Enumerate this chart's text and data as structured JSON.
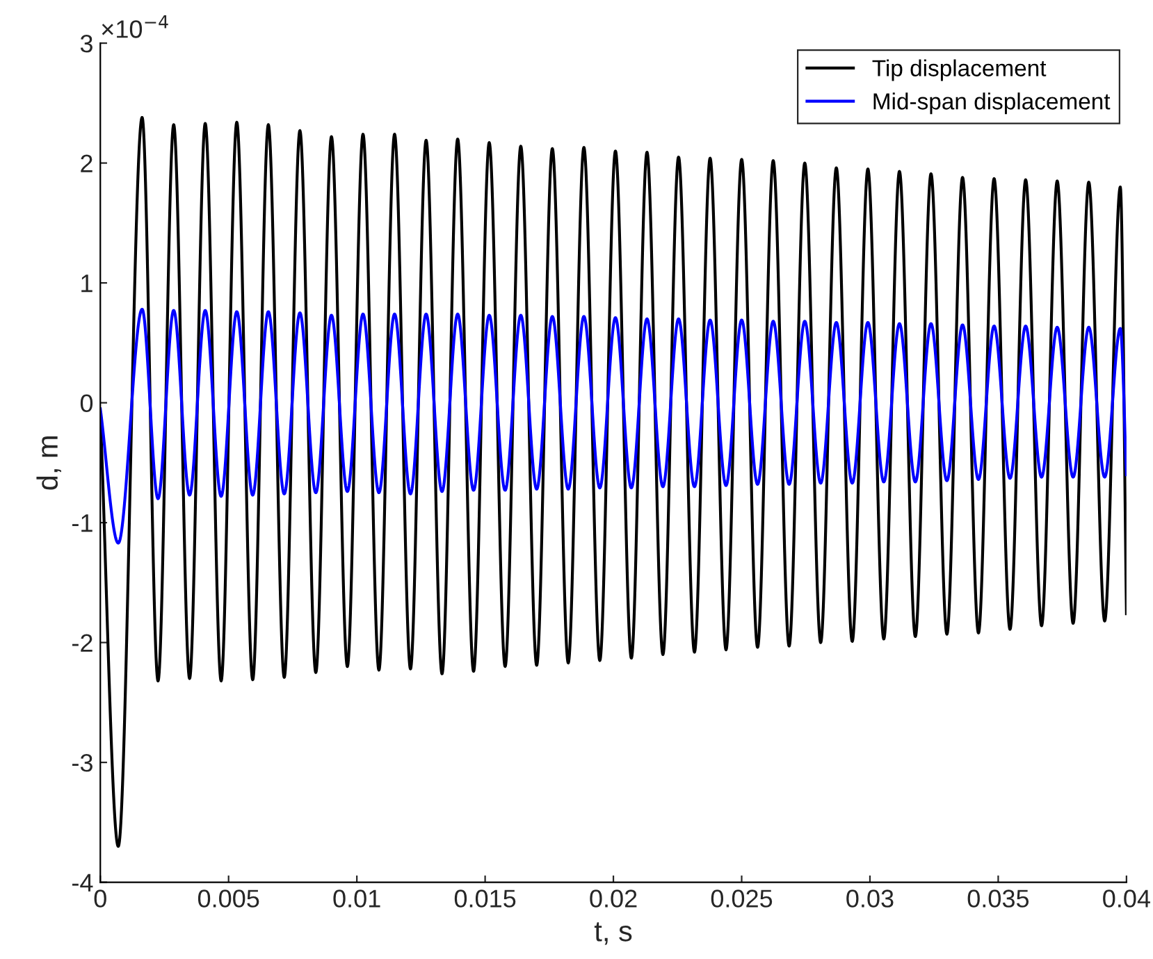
{
  "chart_data": {
    "type": "line",
    "xlabel": "t, s",
    "ylabel": "d, m",
    "annotations": [
      "×10$^{−4}$"
    ],
    "x": [
      0,
      0.0007,
      0.00163,
      0.00225,
      0.00286,
      0.00348,
      0.00409,
      0.00471,
      0.00532,
      0.00594,
      0.00655,
      0.00717,
      0.00778,
      0.0084,
      0.00901,
      0.00963,
      0.01024,
      0.01086,
      0.01147,
      0.01209,
      0.0127,
      0.01332,
      0.01393,
      0.01455,
      0.01516,
      0.01578,
      0.01639,
      0.01701,
      0.01762,
      0.01824,
      0.01885,
      0.01947,
      0.02008,
      0.0207,
      0.02131,
      0.02193,
      0.02254,
      0.02316,
      0.02377,
      0.02439,
      0.025,
      0.02562,
      0.02623,
      0.02685,
      0.02746,
      0.02808,
      0.02869,
      0.02931,
      0.02992,
      0.03054,
      0.03115,
      0.03177,
      0.03238,
      0.033,
      0.03361,
      0.03423,
      0.03484,
      0.03546,
      0.03607,
      0.03669,
      0.0373,
      0.03792,
      0.03853,
      0.03915,
      0.03976,
      0.04
    ],
    "series": [
      {
        "name": "Tip displacement",
        "color": "#000000",
        "values": [
          -0.1,
          -3.7,
          2.38,
          -2.32,
          2.32,
          -2.3,
          2.33,
          -2.32,
          2.34,
          -2.31,
          2.32,
          -2.29,
          2.27,
          -2.25,
          2.22,
          -2.2,
          2.24,
          -2.23,
          2.24,
          -2.22,
          2.19,
          -2.26,
          2.2,
          -2.24,
          2.17,
          -2.2,
          2.14,
          -2.19,
          2.12,
          -2.17,
          2.13,
          -2.15,
          2.1,
          -2.13,
          2.09,
          -2.1,
          2.05,
          -2.08,
          2.04,
          -2.06,
          2.03,
          -2.04,
          2.02,
          -2.03,
          2.0,
          -2.0,
          1.96,
          -1.99,
          1.95,
          -1.97,
          1.93,
          -1.95,
          1.91,
          -1.93,
          1.88,
          -1.92,
          1.87,
          -1.89,
          1.86,
          -1.86,
          1.85,
          -1.84,
          1.84,
          -1.82,
          1.8,
          -1.76
        ]
      },
      {
        "name": "Mid-span displacement",
        "color": "#0000ff",
        "values": [
          -0.05,
          -1.17,
          0.78,
          -0.8,
          0.77,
          -0.77,
          0.77,
          -0.78,
          0.76,
          -0.77,
          0.76,
          -0.76,
          0.75,
          -0.75,
          0.73,
          -0.74,
          0.74,
          -0.75,
          0.74,
          -0.76,
          0.74,
          -0.74,
          0.74,
          -0.73,
          0.73,
          -0.73,
          0.73,
          -0.72,
          0.72,
          -0.72,
          0.72,
          -0.71,
          0.71,
          -0.71,
          0.7,
          -0.7,
          0.7,
          -0.7,
          0.69,
          -0.69,
          0.69,
          -0.68,
          0.68,
          -0.68,
          0.68,
          -0.67,
          0.67,
          -0.67,
          0.67,
          -0.66,
          0.66,
          -0.66,
          0.66,
          -0.65,
          0.65,
          -0.64,
          0.64,
          -0.63,
          0.64,
          -0.62,
          0.63,
          -0.62,
          0.63,
          -0.62,
          0.62,
          -0.6
        ]
      }
    ],
    "xlim": [
      0,
      0.04
    ],
    "xticks": [
      0,
      0.005,
      0.01,
      0.015,
      0.02,
      0.025,
      0.03,
      0.035,
      0.04
    ],
    "ylim": [
      -4,
      3
    ],
    "yticks": [
      -4,
      -3,
      -2,
      -1,
      0,
      1,
      2,
      3
    ],
    "grid": false,
    "legend": "top right",
    "line_style": "solid",
    "marker": "none"
  }
}
